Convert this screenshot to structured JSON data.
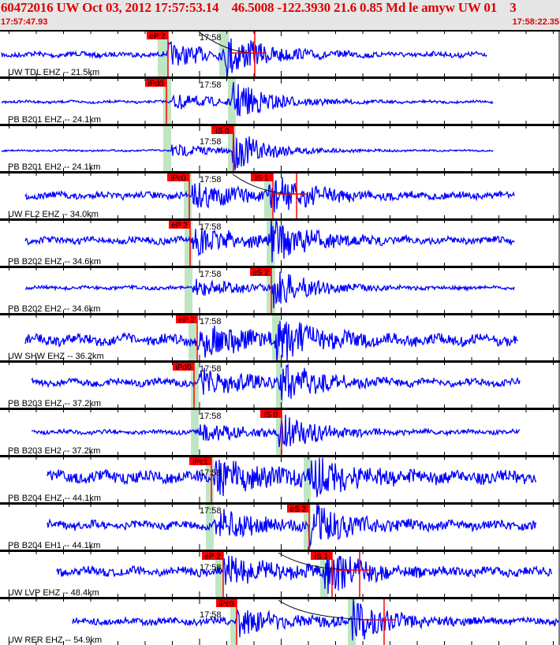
{
  "header": {
    "title": "60472016 UW Oct 03, 2012 17:57:53.14    46.5008 -122.3930 21.6 0.85 Md le amyw UW 01    3",
    "start_time": "17:57:47.93",
    "end_time": "17:58:22.35"
  },
  "colors": {
    "trace": "#0000ff",
    "pick": "#ff0000",
    "window": "#bfe6c2",
    "header_text": "#e00000",
    "header_bg": "#e6e6e6"
  },
  "minute_label": "17:58",
  "channels": [
    {
      "label": "UW TDL EHZ -- 21.5km",
      "picks": [
        "eP 2"
      ]
    },
    {
      "label": "PB B201 EHZ -- 24.1km",
      "picks": [
        "iPd0"
      ]
    },
    {
      "label": "PB B201 EH2 -- 24.1km",
      "picks": [
        "iS 0"
      ]
    },
    {
      "label": "UW FL2 EHZ -- 34.0km",
      "picks": [
        "iPc0",
        "iS 1"
      ]
    },
    {
      "label": "PB B202 EHZ -- 34.6km",
      "picks": [
        "eP 2"
      ]
    },
    {
      "label": "PB B202 EH2 -- 34.6km",
      "picks": [
        "eS 2"
      ]
    },
    {
      "label": "UW SHW EHZ -- 36.2km",
      "picks": [
        "eP 2"
      ]
    },
    {
      "label": "PB B203 EHZ -- 37.2km",
      "picks": [
        "iPd0"
      ]
    },
    {
      "label": "PB B203 EH2 -- 37.2km",
      "picks": [
        "iS 0"
      ]
    },
    {
      "label": "PB B204 EHZ -- 44.1km",
      "picks": [
        "iPc1"
      ]
    },
    {
      "label": "PB B204 EH1 -- 44.1km",
      "picks": [
        "eS 2"
      ]
    },
    {
      "label": "UW LVP EHZ -- 48.4km",
      "picks": [
        "eP 2",
        "iS 1"
      ]
    },
    {
      "label": "UW RER EHZ -- 54.9km",
      "picks": [
        "iPc0"
      ]
    }
  ]
}
